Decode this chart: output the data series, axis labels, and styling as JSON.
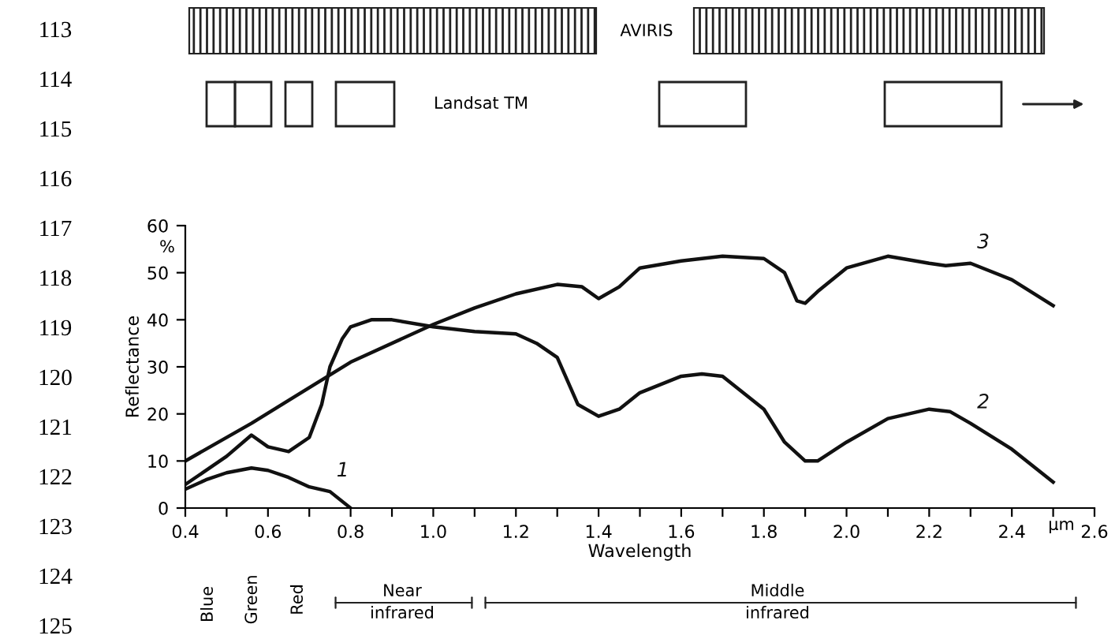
{
  "chart_data": {
    "type": "line",
    "xlabel": "Wavelength",
    "ylabel": "Reflectance",
    "xlim": [
      0.4,
      2.6
    ],
    "ylim": [
      0,
      60
    ],
    "xticks": [
      0.4,
      {
        "value": 0.5,
        "label": null
      },
      0.6,
      {
        "value": 0.7,
        "label": null
      },
      0.8,
      {
        "value": 0.9,
        "label": null
      },
      {
        "value": 1.0,
        "label": "1.0"
      },
      {
        "value": 1.1,
        "label": null
      },
      1.2,
      {
        "value": 1.3,
        "label": null
      },
      1.4,
      {
        "value": 1.5,
        "label": null
      },
      1.6,
      {
        "value": 1.7,
        "label": null
      },
      1.8,
      {
        "value": 1.9,
        "label": null
      },
      {
        "value": 2.0,
        "label": "2.0"
      },
      {
        "value": 2.1,
        "label": null
      },
      2.2,
      {
        "value": 2.3,
        "label": null
      },
      2.4,
      {
        "value": 2.5,
        "label": null
      },
      2.6
    ],
    "yticks": [
      0,
      10,
      20,
      30,
      40,
      50,
      60
    ],
    "grid": false,
    "legend": false,
    "marker": "none",
    "line_style": "solid",
    "series": [
      {
        "name": "1",
        "color": "#111111",
        "x": [
          0.4,
          0.45,
          0.5,
          0.56,
          0.6,
          0.65,
          0.7,
          0.75,
          0.8
        ],
        "values": [
          4,
          6,
          7.5,
          8.5,
          8,
          6.5,
          4.5,
          3.5,
          0
        ]
      },
      {
        "name": "2",
        "color": "#111111",
        "x": [
          0.4,
          0.5,
          0.56,
          0.6,
          0.65,
          0.7,
          0.73,
          0.75,
          0.78,
          0.8,
          0.85,
          0.9,
          1.0,
          1.1,
          1.2,
          1.25,
          1.3,
          1.35,
          1.4,
          1.45,
          1.5,
          1.6,
          1.65,
          1.7,
          1.8,
          1.85,
          1.9,
          1.93,
          2.0,
          2.1,
          2.2,
          2.25,
          2.3,
          2.4,
          2.5
        ],
        "values": [
          5,
          11,
          15.5,
          13,
          12,
          15,
          22,
          30,
          36,
          38.5,
          40,
          40,
          38.5,
          37.5,
          37,
          35,
          32,
          22,
          19.5,
          21,
          24.5,
          28,
          28.5,
          28,
          21,
          14,
          10,
          10,
          14,
          19,
          21,
          20.5,
          18,
          12.5,
          5.5
        ]
      },
      {
        "name": "3",
        "color": "#111111",
        "x": [
          0.4,
          0.56,
          0.8,
          1.0,
          1.1,
          1.2,
          1.3,
          1.36,
          1.4,
          1.45,
          1.5,
          1.6,
          1.7,
          1.8,
          1.85,
          1.88,
          1.9,
          1.93,
          2.0,
          2.1,
          2.2,
          2.24,
          2.3,
          2.4,
          2.5
        ],
        "values": [
          10,
          18,
          31,
          39,
          42.5,
          45.5,
          47.5,
          47,
          44.5,
          47,
          51,
          52.5,
          53.5,
          53,
          50,
          44,
          43.5,
          46,
          51,
          53.5,
          52,
          51.5,
          52,
          48.5,
          43
        ]
      }
    ],
    "annotations": [
      "113",
      "114",
      "115",
      "116",
      "117",
      "118",
      "119",
      "120",
      "121",
      "122",
      "123",
      "124",
      "125",
      "AVIRIS",
      "Landsat TM",
      "%",
      "µm",
      "Blue",
      "Green",
      "Red",
      "Near\ninfrared",
      "Middle\ninfrared"
    ]
  }
}
